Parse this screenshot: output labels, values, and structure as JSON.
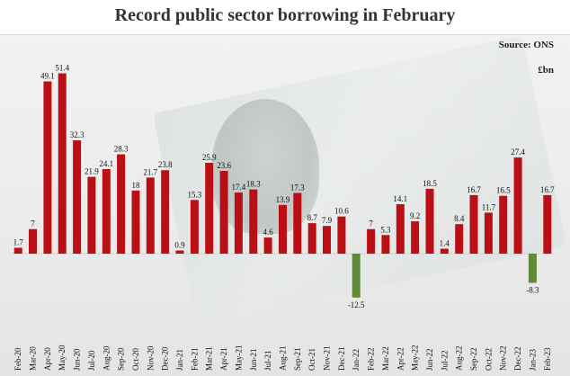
{
  "chart_data": {
    "type": "bar",
    "title": "Record public sector borrowing in February",
    "source": "Source: ONS",
    "unit": "£bn",
    "categories": [
      "Feb-20",
      "Mar-20",
      "Apr-20",
      "May-20",
      "Jun-20",
      "Jul-20",
      "Aug-20",
      "Sep-20",
      "Oct-20",
      "Nov-20",
      "Dec-20",
      "Jan-21",
      "Feb-21",
      "Mar-21",
      "Apr-21",
      "May-21",
      "Jun-21",
      "Jul-21",
      "Aug-21",
      "Sep-21",
      "Oct-21",
      "Nov-21",
      "Dec-21",
      "Jan-22",
      "Feb-22",
      "Mar-22",
      "Apr-22",
      "May-22",
      "Jun-22",
      "Jul-22",
      "Aug-22",
      "Sep-22",
      "Oct-22",
      "Nov-22",
      "Dec-22",
      "Jan-23",
      "Feb-23"
    ],
    "values": [
      1.7,
      7,
      49.1,
      51.4,
      32.3,
      21.9,
      24.1,
      28.3,
      18,
      21.7,
      23.8,
      0.9,
      15.3,
      25.9,
      23.6,
      17.4,
      18.3,
      4.6,
      13.9,
      17.3,
      8.7,
      7.9,
      10.6,
      -12.5,
      7,
      5.3,
      14.1,
      9.2,
      18.5,
      1.4,
      8.4,
      16.7,
      11.7,
      16.5,
      27.4,
      -8.3,
      16.7
    ],
    "data_labels": [
      "1.7",
      "7",
      "49.1",
      "51.4",
      "32.3",
      "21.9",
      "24.1",
      "28.3",
      "18",
      "21.7",
      "23.8",
      "0.9",
      "15.3",
      "25.9",
      "23.6",
      "17.4",
      "18.3",
      "4.6",
      "13.9",
      "17.3",
      "8.7",
      "7.9",
      "10.6",
      "-12.5",
      "7",
      "5.3",
      "14.1",
      "9.2",
      "18.5",
      "1.4",
      "8.4",
      "16.7",
      "11.7",
      "16.5",
      "27.4",
      "-8.3",
      "16.7"
    ],
    "colors": {
      "positive": "#bb0f16",
      "negative": "#5e8a3a"
    },
    "xlabel": "",
    "ylabel": "",
    "ylim": [
      -15,
      55
    ],
    "grid": false,
    "legend": "none"
  }
}
